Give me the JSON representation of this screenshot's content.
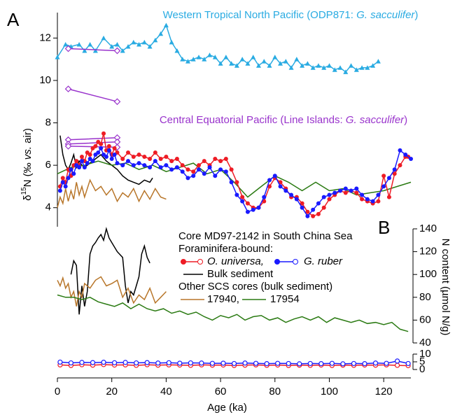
{
  "chart_data": [
    {
      "type": "line",
      "panel_label": "A",
      "y_axis_side": "left",
      "ylabel_parts": [
        "δ",
        "15",
        "N (‰ ",
        "vs.",
        " air)"
      ],
      "ylim": [
        3.1,
        13.2
      ],
      "yticks": [
        4,
        6,
        8,
        10,
        12
      ],
      "series": [
        {
          "color": "#29abe2",
          "marker": "triangle",
          "annotation_parts": [
            "Western Tropical North Pacific (ODP871: ",
            "G. sacculifer",
            ")"
          ],
          "x": [
            0,
            3,
            5,
            8,
            10,
            12,
            14,
            17,
            20,
            22,
            24,
            26,
            28,
            30,
            32,
            34,
            36,
            38,
            40,
            42,
            44,
            46,
            48,
            50,
            52,
            54,
            56,
            58,
            60,
            62,
            64,
            66,
            68,
            70,
            72,
            74,
            76,
            78,
            80,
            82,
            84,
            86,
            88,
            90,
            92,
            94,
            96,
            98,
            100,
            102,
            104,
            106,
            108,
            110,
            112,
            114,
            116,
            118
          ],
          "values": [
            11.1,
            11.7,
            11.6,
            11.7,
            11.4,
            11.7,
            11.4,
            12.0,
            11.6,
            11.7,
            11.4,
            11.6,
            11.8,
            11.7,
            11.8,
            11.6,
            11.9,
            12.2,
            12.6,
            11.8,
            11.4,
            11.0,
            10.9,
            11.0,
            11.1,
            11.0,
            11.2,
            11.1,
            10.8,
            11.1,
            10.8,
            10.7,
            11.0,
            10.8,
            11.1,
            10.7,
            10.9,
            10.7,
            11.1,
            10.8,
            10.9,
            10.6,
            11.0,
            10.7,
            10.8,
            10.6,
            10.7,
            10.6,
            10.7,
            10.5,
            10.6,
            10.4,
            10.7,
            10.5,
            10.6,
            10.6,
            10.7,
            10.9
          ]
        },
        {
          "color": "#9933cc",
          "marker": "open-diamond",
          "annotation_parts": [
            "Central Equatorial Pacific (Line Islands: ",
            "G. sacculifer",
            ")"
          ],
          "x": [
            4,
            22,
            22,
            4,
            22,
            22,
            4,
            22,
            22,
            4,
            22,
            22,
            4,
            22
          ],
          "values": [
            11.5,
            11.4,
            null,
            9.6,
            9.0,
            null,
            7.2,
            7.3,
            null,
            7.0,
            7.1,
            null,
            6.9,
            6.85
          ]
        },
        {
          "name": "Bulk sediment",
          "color": "#000000",
          "marker": "none",
          "x": [
            1,
            2,
            3,
            4,
            5,
            6,
            7,
            8,
            9,
            10,
            12,
            14,
            16,
            18,
            20,
            22,
            24,
            26,
            28,
            30,
            32,
            34,
            35
          ],
          "values": [
            7.4,
            6.5,
            6.0,
            5.8,
            6.1,
            6.5,
            5.9,
            6.2,
            6.0,
            5.9,
            6.1,
            6.3,
            6.5,
            6.2,
            6.0,
            5.8,
            5.5,
            5.3,
            5.2,
            5.1,
            5.3,
            5.2,
            5.4
          ]
        },
        {
          "name": "17940,",
          "color": "#b8762a",
          "marker": "none",
          "x": [
            0,
            1,
            2,
            3,
            4,
            5,
            6,
            7,
            8,
            9,
            10,
            12,
            14,
            16,
            18,
            20,
            22,
            24,
            26,
            28,
            30,
            32,
            34,
            36,
            38,
            40
          ],
          "values": [
            4.0,
            4.5,
            4.2,
            4.9,
            4.3,
            4.8,
            4.4,
            5.2,
            4.6,
            5.0,
            4.5,
            5.3,
            4.8,
            5.0,
            4.6,
            4.9,
            4.3,
            4.7,
            4.5,
            4.9,
            4.3,
            4.8,
            4.4,
            4.9,
            4.5,
            4.4
          ]
        },
        {
          "name": "17954",
          "color": "#2a7a12",
          "marker": "none",
          "x": [
            0,
            5,
            10,
            15,
            20,
            25,
            30,
            35,
            40,
            45,
            50,
            55,
            60,
            65,
            70,
            75,
            80,
            85,
            90,
            95,
            100,
            105,
            110,
            115,
            120,
            125,
            130
          ],
          "values": [
            5.6,
            5.9,
            6.0,
            6.2,
            6.0,
            6.1,
            5.8,
            6.0,
            5.7,
            5.9,
            6.1,
            5.6,
            5.8,
            5.2,
            4.5,
            5.0,
            5.5,
            5.2,
            4.8,
            5.2,
            4.8,
            4.9,
            4.6,
            4.7,
            4.8,
            5.0,
            5.2
          ]
        },
        {
          "name": "O. universa,",
          "color": "#ee1c25",
          "marker": "circle",
          "x": [
            1,
            2,
            3,
            4,
            5,
            6,
            7,
            8,
            9,
            10,
            11,
            12,
            13,
            14,
            15,
            16,
            17,
            18,
            19,
            20,
            21,
            22,
            24,
            26,
            28,
            30,
            32,
            34,
            36,
            38,
            40,
            42,
            44,
            46,
            48,
            50,
            52,
            54,
            56,
            58,
            60,
            62,
            64,
            66,
            68,
            70,
            72,
            74,
            76,
            78,
            80,
            82,
            84,
            86,
            88,
            90,
            92,
            94,
            96,
            98,
            100,
            102,
            104,
            106,
            108,
            110,
            112,
            114,
            116,
            118,
            120,
            122,
            124,
            126,
            128,
            129
          ],
          "values": [
            5.0,
            5.4,
            5.2,
            5.8,
            5.5,
            6.0,
            6.2,
            6.0,
            6.4,
            6.2,
            6.6,
            6.5,
            6.8,
            6.9,
            7.1,
            7.0,
            7.5,
            6.7,
            6.9,
            6.5,
            6.8,
            6.6,
            6.3,
            6.6,
            6.4,
            6.5,
            6.4,
            6.3,
            6.6,
            6.3,
            6.4,
            6.2,
            6.3,
            6.0,
            5.8,
            5.7,
            6.0,
            6.2,
            6.0,
            6.3,
            6.2,
            6.3,
            5.8,
            5.2,
            4.5,
            4.2,
            4.0,
            4.0,
            4.3,
            5.0,
            5.4,
            5.2,
            4.9,
            4.5,
            4.5,
            4.2,
            3.8,
            3.6,
            3.7,
            4.0,
            4.4,
            4.6,
            4.8,
            4.7,
            4.8,
            4.7,
            4.4,
            4.3,
            4.2,
            4.3,
            5.5,
            4.5,
            5.6,
            6.0,
            6.4,
            6.4
          ]
        },
        {
          "name": "G. ruber",
          "color": "#1a1aff",
          "marker": "circle",
          "x": [
            1,
            2,
            3,
            4,
            5,
            6,
            7,
            8,
            9,
            10,
            11,
            12,
            13,
            14,
            15,
            16,
            17,
            18,
            19,
            20,
            21,
            22,
            24,
            26,
            28,
            30,
            32,
            34,
            36,
            38,
            40,
            42,
            44,
            46,
            48,
            50,
            52,
            54,
            56,
            58,
            60,
            62,
            64,
            66,
            68,
            70,
            72,
            74,
            76,
            78,
            80,
            82,
            84,
            86,
            88,
            90,
            92,
            94,
            96,
            98,
            100,
            102,
            104,
            106,
            108,
            110,
            112,
            114,
            116,
            118,
            120,
            122,
            124,
            126,
            128,
            130
          ],
          "values": [
            4.8,
            5.2,
            5.0,
            5.4,
            5.8,
            5.6,
            6.0,
            5.9,
            6.2,
            5.9,
            6.1,
            6.3,
            6.2,
            6.5,
            6.6,
            6.8,
            6.5,
            6.4,
            6.7,
            6.3,
            6.5,
            6.1,
            6.0,
            6.2,
            6.0,
            6.1,
            6.0,
            5.9,
            6.2,
            5.9,
            6.0,
            5.8,
            5.9,
            5.7,
            5.4,
            5.5,
            5.8,
            5.6,
            5.9,
            5.5,
            5.8,
            5.7,
            5.2,
            4.6,
            4.3,
            3.8,
            3.9,
            4.0,
            4.5,
            5.3,
            5.5,
            5.0,
            4.8,
            4.6,
            4.4,
            4.0,
            3.6,
            3.9,
            4.2,
            4.5,
            4.6,
            4.7,
            4.8,
            4.9,
            4.8,
            4.9,
            4.6,
            4.4,
            4.3,
            4.6,
            5.0,
            5.4,
            5.8,
            6.7,
            6.5,
            6.3
          ]
        }
      ]
    },
    {
      "type": "line",
      "panel_label": "B",
      "y_axis_side": "right",
      "ylabel": "N content (µmol N/g)",
      "legend_title": "Core MD97-2142 in South China Sea",
      "legend_subtitle": "Foraminifera-bound:",
      "legend_other": "Other SCS cores (bulk sediment)",
      "ylim": [
        40,
        140
      ],
      "yticks": [
        40,
        60,
        80,
        100,
        120,
        140
      ],
      "series": [
        {
          "color": "#000000",
          "marker": "none",
          "x": [
            5,
            6,
            7,
            8,
            9,
            10,
            11,
            12,
            13,
            14,
            15,
            16,
            17,
            18,
            19,
            20,
            22,
            24,
            25,
            26,
            27,
            28,
            29,
            30,
            31,
            32,
            33,
            34
          ],
          "values": [
            100,
            112,
            108,
            65,
            90,
            72,
            85,
            118,
            125,
            128,
            132,
            135,
            130,
            140,
            132,
            128,
            120,
            115,
            90,
            75,
            85,
            82,
            90,
            98,
            118,
            125,
            115,
            110
          ]
        },
        {
          "color": "#b8762a",
          "marker": "none",
          "x": [
            0,
            1,
            2,
            3,
            4,
            5,
            6,
            7,
            8,
            9,
            10,
            12,
            14,
            16,
            18,
            20,
            22,
            24,
            26,
            28,
            30,
            32,
            34,
            36,
            38,
            40
          ],
          "values": [
            95,
            90,
            97,
            88,
            92,
            80,
            85,
            72,
            85,
            80,
            92,
            88,
            95,
            98,
            90,
            92,
            95,
            80,
            88,
            75,
            82,
            78,
            88,
            75,
            80,
            85
          ]
        },
        {
          "color": "#2a7a12",
          "marker": "none",
          "x": [
            0,
            3,
            6,
            9,
            12,
            15,
            18,
            21,
            24,
            27,
            30,
            33,
            36,
            39,
            42,
            45,
            48,
            51,
            54,
            57,
            60,
            63,
            66,
            69,
            72,
            75,
            78,
            81,
            84,
            87,
            90,
            93,
            96,
            99,
            102,
            105,
            108,
            111,
            114,
            117,
            120,
            123,
            126,
            129
          ],
          "values": [
            82,
            80,
            80,
            78,
            80,
            76,
            74,
            72,
            75,
            70,
            74,
            70,
            68,
            70,
            66,
            68,
            65,
            67,
            63,
            60,
            64,
            62,
            65,
            60,
            63,
            64,
            60,
            62,
            58,
            61,
            63,
            60,
            63,
            58,
            62,
            60,
            58,
            60,
            57,
            58,
            56,
            58,
            52,
            50
          ]
        }
      ]
    },
    {
      "type": "line",
      "y_axis_side": "right",
      "ylim": [
        0,
        10
      ],
      "yticks": [
        0,
        5,
        10
      ],
      "xlim": [
        0,
        130
      ],
      "xticks": [
        0,
        20,
        40,
        60,
        80,
        100,
        120
      ],
      "xlabel": "Age (ka)",
      "series": [
        {
          "color": "#ee1c25",
          "marker": "open-circle",
          "x": [
            1,
            5,
            9,
            13,
            17,
            21,
            25,
            29,
            33,
            37,
            41,
            45,
            49,
            53,
            57,
            61,
            65,
            69,
            73,
            77,
            81,
            85,
            89,
            93,
            97,
            101,
            105,
            109,
            113,
            117,
            121,
            125,
            129
          ],
          "values": [
            3,
            2.6,
            3.1,
            2.8,
            3.2,
            2.9,
            3,
            2.7,
            3.1,
            2.8,
            3,
            2.9,
            2.7,
            3,
            2.8,
            2.9,
            2.6,
            2.8,
            3,
            2.7,
            2.9,
            2.6,
            2.8,
            2.7,
            2.9,
            2.6,
            2.8,
            2.7,
            2.9,
            2.8,
            3,
            2.7,
            2.5
          ]
        },
        {
          "color": "#1a1aff",
          "marker": "open-circle",
          "x": [
            1,
            5,
            9,
            13,
            17,
            21,
            25,
            29,
            33,
            37,
            41,
            45,
            49,
            53,
            57,
            61,
            65,
            69,
            73,
            77,
            81,
            85,
            89,
            93,
            97,
            101,
            105,
            109,
            113,
            117,
            121,
            125,
            129
          ],
          "values": [
            4.8,
            4.3,
            4.6,
            4.5,
            4.7,
            4.4,
            4.6,
            4.3,
            4.5,
            4.2,
            4.4,
            4.1,
            4.3,
            4.2,
            4,
            4.1,
            3.9,
            4.2,
            4,
            3.8,
            4,
            3.9,
            3.7,
            3.9,
            3.8,
            4,
            3.7,
            3.9,
            3.8,
            4.2,
            4,
            5.5,
            3.9
          ]
        }
      ]
    }
  ]
}
